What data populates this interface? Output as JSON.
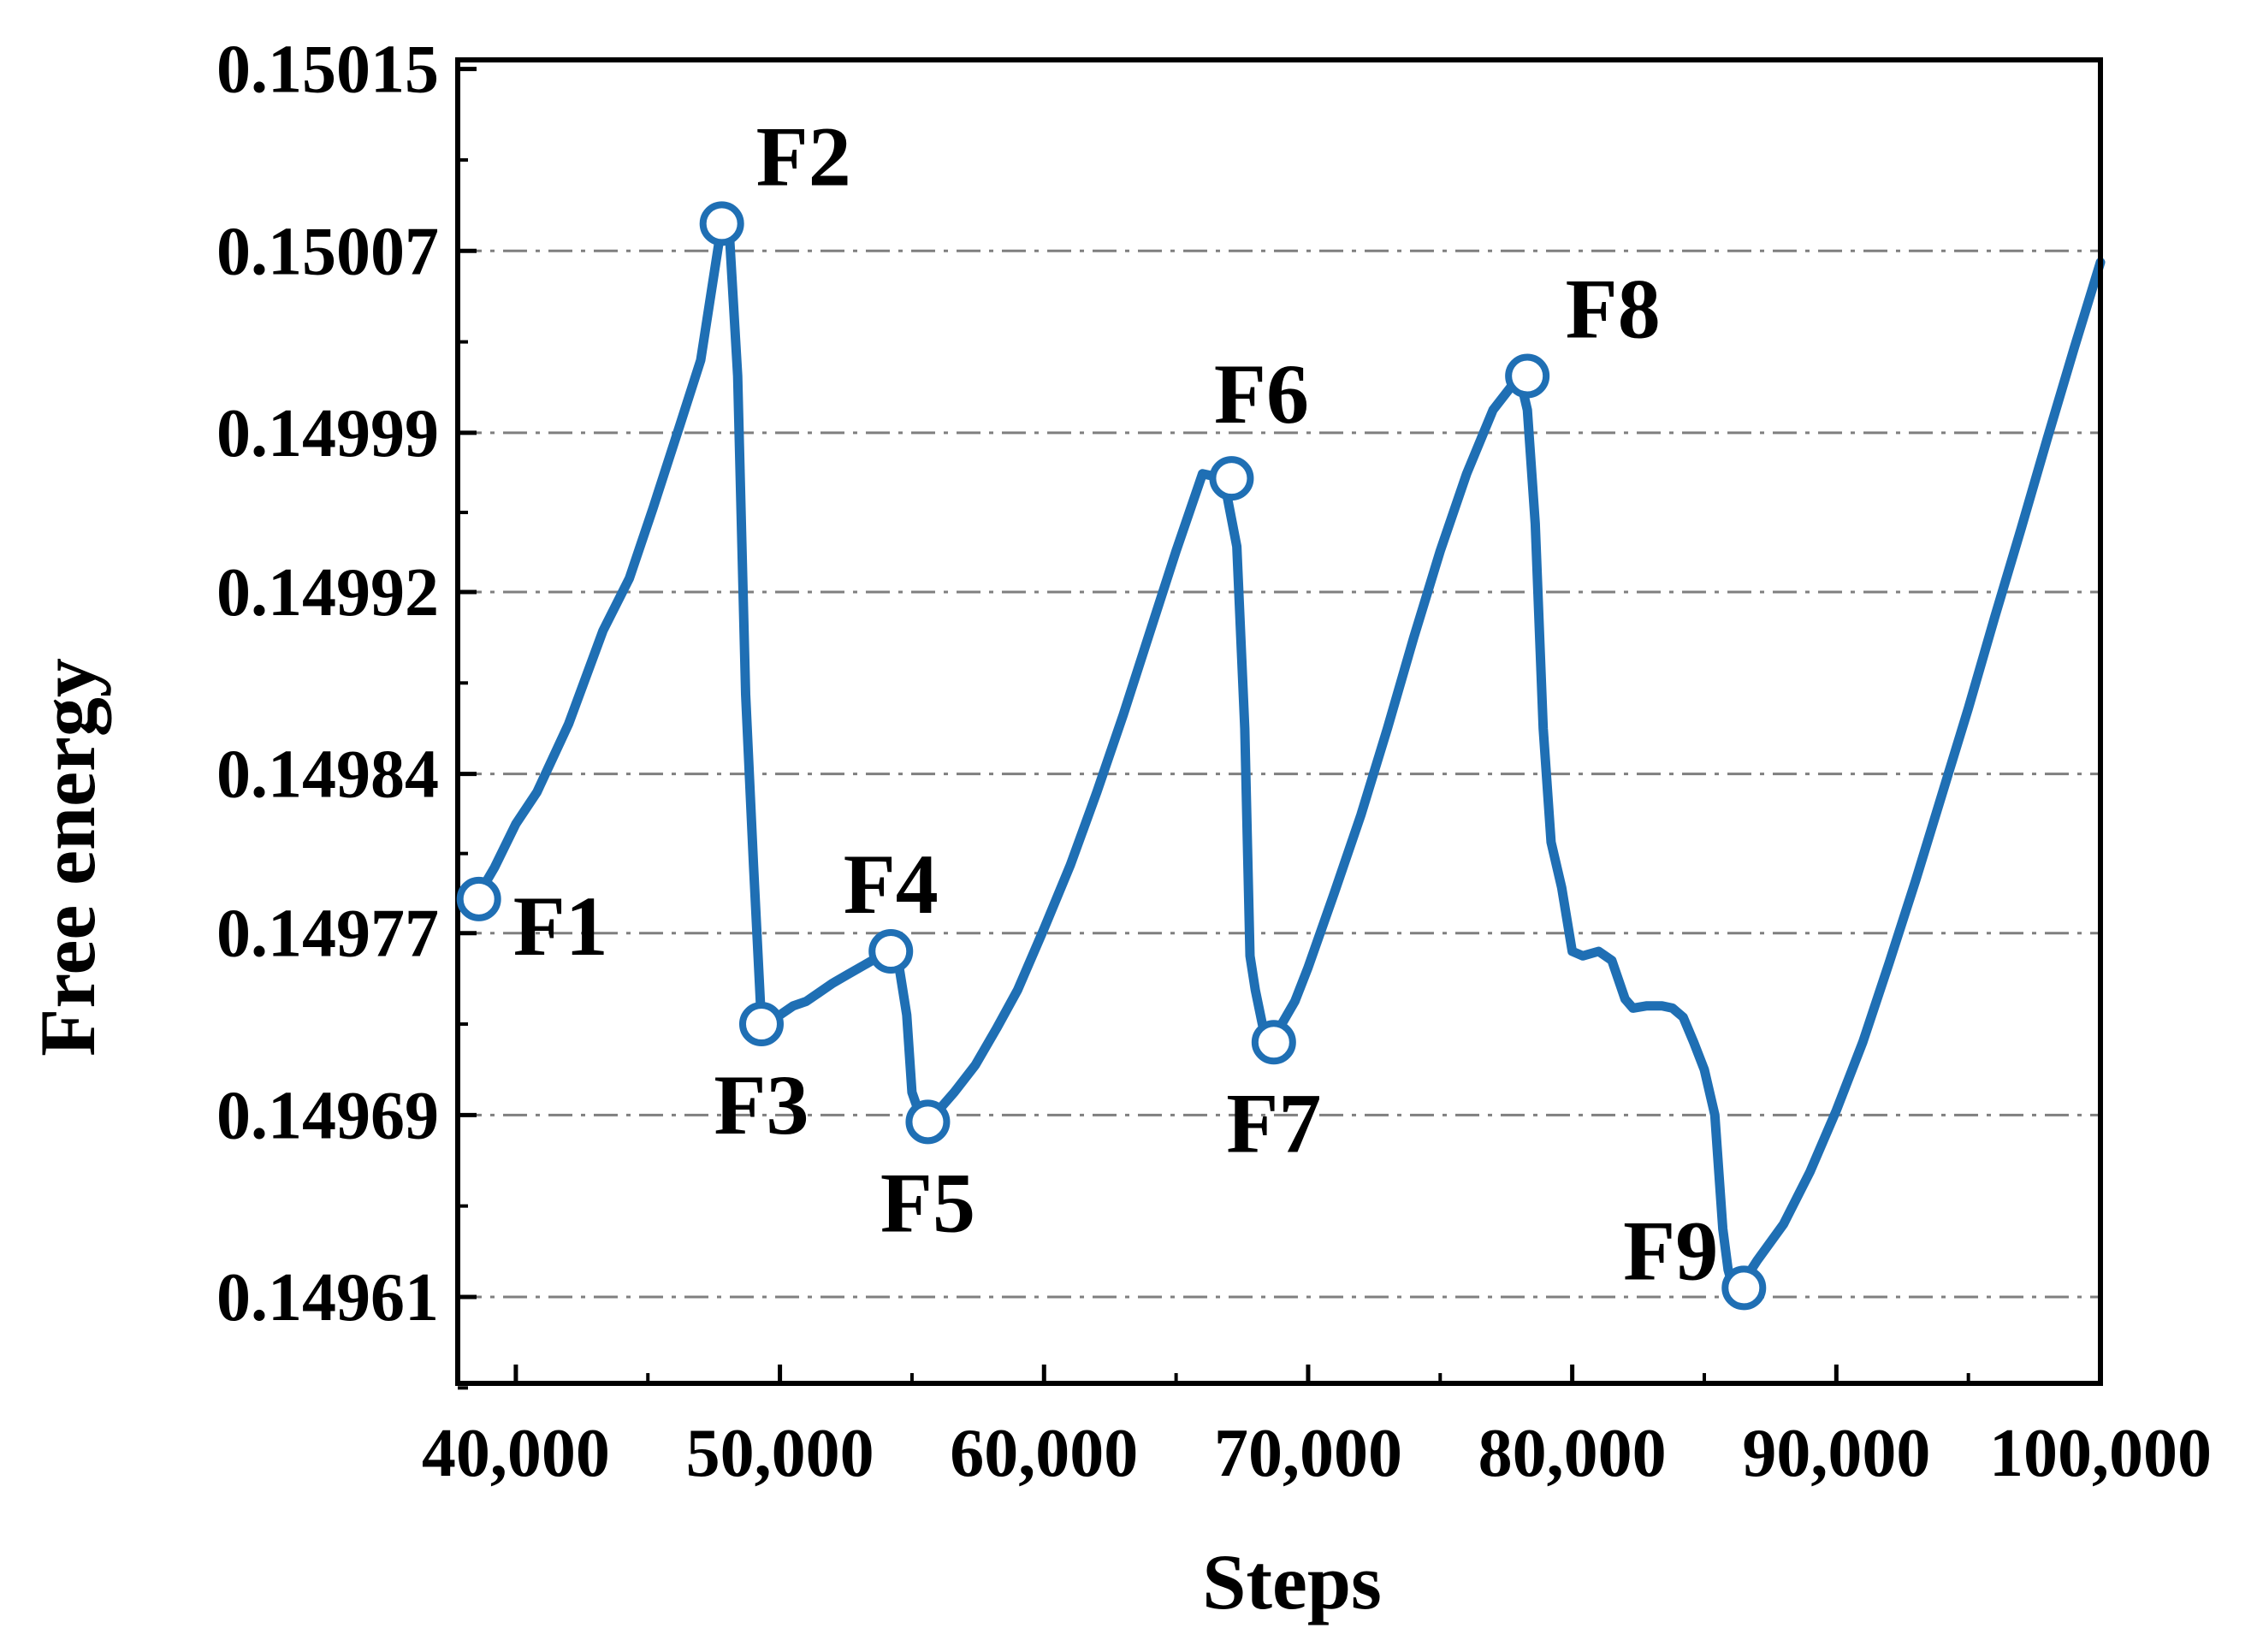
{
  "chart_data": {
    "type": "line",
    "title": "",
    "xlabel": "Steps",
    "ylabel": "Free energy",
    "xlim": [
      37800,
      100000
    ],
    "ylim": [
      0.149572,
      0.150154
    ],
    "x_ticks": [
      40000,
      50000,
      60000,
      70000,
      80000,
      90000,
      100000
    ],
    "x_tick_labels": [
      "40,000",
      "50,000",
      "60,000",
      "70,000",
      "80,000",
      "90,000",
      "100,000"
    ],
    "y_ticks": [
      0.14961,
      0.14969,
      0.14977,
      0.14984,
      0.14992,
      0.14999,
      0.15007,
      0.15015
    ],
    "y_tick_labels": [
      "0.14961",
      "0.14969",
      "0.14977",
      "0.14984",
      "0.14992",
      "0.14999",
      "0.15007",
      "0.15015"
    ],
    "grid": "horizontal dash-dot",
    "line_color": "#1f6fb4",
    "series": [
      {
        "x": [
          38500,
          39200,
          40000,
          40800,
          42000,
          43300,
          44300,
          45200,
          46200,
          47000,
          47800,
          48100,
          48400,
          48700,
          49000,
          49300,
          50000,
          50500,
          51000,
          51500,
          52000,
          52600,
          53200,
          53800,
          54200,
          54500,
          54800,
          55000,
          55300,
          55600,
          56000,
          56600,
          57400,
          58200,
          59000,
          60000,
          61000,
          62000,
          63000,
          64000,
          65000,
          66000,
          66800,
          67300,
          67600,
          67800,
          68000,
          68300,
          68700,
          69000,
          69500,
          70000,
          71000,
          72000,
          73000,
          74000,
          75000,
          76000,
          77000,
          78000,
          78300,
          78600,
          78900,
          79200,
          79600,
          80000,
          80400,
          81000,
          81500,
          82000,
          82300,
          82800,
          83400,
          83800,
          84200,
          84600,
          85000,
          85400,
          85700,
          85900,
          86100,
          86500,
          87000,
          88000,
          89000,
          90000,
          91000,
          92000,
          93000,
          94000,
          95000,
          96000,
          97000,
          98000,
          99000,
          100000
        ],
        "y": [
          0.149785,
          0.149799,
          0.149818,
          0.149832,
          0.149862,
          0.149903,
          0.149926,
          0.149957,
          0.149993,
          0.150022,
          0.150082,
          0.150075,
          0.150015,
          0.149875,
          0.1498,
          0.14973,
          0.149734,
          0.149738,
          0.14974,
          0.149744,
          0.149748,
          0.149752,
          0.149756,
          0.14976,
          0.149762,
          0.149756,
          0.149734,
          0.1497,
          0.14969,
          0.149687,
          0.149692,
          0.1497,
          0.149712,
          0.149728,
          0.149745,
          0.149772,
          0.1498,
          0.149832,
          0.149866,
          0.149902,
          0.149938,
          0.149972,
          0.14997,
          0.14994,
          0.14986,
          0.14976,
          0.149745,
          0.149728,
          0.149722,
          0.14973,
          0.14974,
          0.149755,
          0.149788,
          0.149822,
          0.14986,
          0.1499,
          0.149938,
          0.149972,
          0.15,
          0.150015,
          0.15,
          0.14995,
          0.14986,
          0.14981,
          0.14979,
          0.149762,
          0.14976,
          0.149762,
          0.149758,
          0.149741,
          0.149737,
          0.149738,
          0.149738,
          0.149737,
          0.149733,
          0.149722,
          0.14971,
          0.14969,
          0.14964,
          0.149622,
          0.149614,
          0.149617,
          0.149626,
          0.149642,
          0.149665,
          0.149692,
          0.149722,
          0.149757,
          0.149793,
          0.149831,
          0.149869,
          0.149909,
          0.149948,
          0.149988,
          0.150027,
          0.150065
        ]
      }
    ],
    "markers": [
      {
        "label": "F1",
        "x": 38600,
        "y": 0.149785
      },
      {
        "label": "F2",
        "x": 47800,
        "y": 0.150082
      },
      {
        "label": "F3",
        "x": 49300,
        "y": 0.14973
      },
      {
        "label": "F4",
        "x": 54200,
        "y": 0.149762
      },
      {
        "label": "F5",
        "x": 55600,
        "y": 0.149687
      },
      {
        "label": "F6",
        "x": 67100,
        "y": 0.14997
      },
      {
        "label": "F7",
        "x": 68700,
        "y": 0.149722
      },
      {
        "label": "F8",
        "x": 78300,
        "y": 0.150015
      },
      {
        "label": "F9",
        "x": 86500,
        "y": 0.149614
      }
    ]
  }
}
